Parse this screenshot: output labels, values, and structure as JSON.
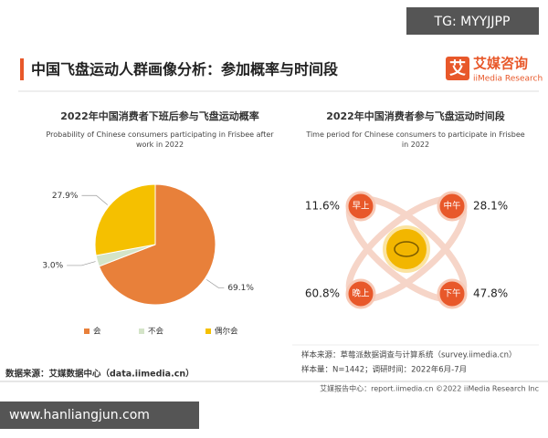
{
  "header": {
    "title": "中国飞盘运动人群画像分析：参加概率与时间段",
    "brand_icon": "艾",
    "brand_cn": "艾媒咨询",
    "brand_en": "iiMedia Research"
  },
  "watermarks": {
    "top": "TG: MYYJJPP",
    "bottom": "www.hanliangjun.com"
  },
  "chart_data": {
    "type": "pie",
    "title": "2022年中国消费者下班后参与飞盘运动概率",
    "subtitle": "Probability of Chinese consumers participating in Frisbee after work in 2022",
    "categories": [
      "会",
      "不会",
      "偶尔会"
    ],
    "values": [
      69.1,
      3.0,
      27.9
    ],
    "value_labels": [
      "69.1%",
      "3.0%",
      "27.9%"
    ],
    "colors": [
      "#e8803a",
      "#d4e4c8",
      "#f5c000"
    ]
  },
  "time_panel": {
    "title": "2022年中国消费者参与飞盘运动时间段",
    "subtitle": "Time period for Chinese consumers to participate in Frisbee in 2022",
    "slots": [
      {
        "label": "早上",
        "value": "11.6%"
      },
      {
        "label": "中午",
        "value": "28.1%"
      },
      {
        "label": "晚上",
        "value": "60.8%"
      },
      {
        "label": "下午",
        "value": "47.8%"
      }
    ]
  },
  "footer": {
    "source": "数据来源：艾媒数据中心（data.iimedia.cn）",
    "sample_source": "样本来源：草莓派数据调查与计算系统（survey.iimedia.cn）",
    "sample_size": "样本量：N=1442；调研时间：2022年6月-7月",
    "report": "艾媒报告中心：report.iimedia.cn ©2022 iiMedia Research Inc"
  }
}
